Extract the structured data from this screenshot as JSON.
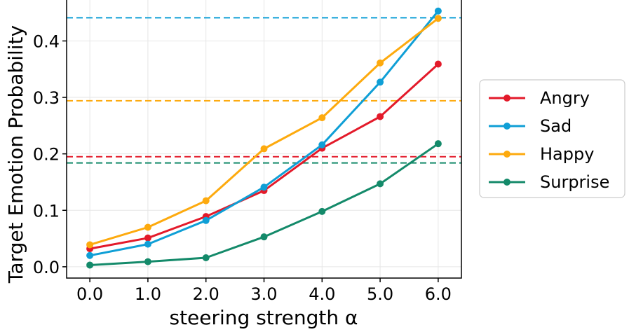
{
  "chart_data": {
    "type": "line",
    "title": "",
    "xlabel": "steering strength α",
    "ylabel": "Target Emotion Probability",
    "x": [
      0.0,
      1.0,
      2.0,
      3.0,
      4.0,
      5.0,
      6.0
    ],
    "xtick_labels": [
      "0.0",
      "1.0",
      "2.0",
      "3.0",
      "4.0",
      "5.0",
      "6.0"
    ],
    "yticks": [
      0.0,
      0.1,
      0.2,
      0.3,
      0.4
    ],
    "ytick_labels": [
      "0.0",
      "0.1",
      "0.2",
      "0.3",
      "0.4"
    ],
    "xlim": [
      -0.4,
      6.4
    ],
    "ylim": [
      -0.02,
      0.475
    ],
    "grid": true,
    "legend_position": "outside-right",
    "series": [
      {
        "name": "Angry",
        "color": "#e31a2a",
        "values": [
          0.032,
          0.051,
          0.089,
          0.135,
          0.21,
          0.266,
          0.359
        ],
        "baseline": 0.195
      },
      {
        "name": "Sad",
        "color": "#0f9fd6",
        "values": [
          0.02,
          0.04,
          0.082,
          0.141,
          0.216,
          0.327,
          0.453
        ],
        "baseline": 0.441
      },
      {
        "name": "Happy",
        "color": "#fdaa0e",
        "values": [
          0.039,
          0.07,
          0.117,
          0.209,
          0.264,
          0.361,
          0.44
        ],
        "baseline": 0.294
      },
      {
        "name": "Surprise",
        "color": "#148a6a",
        "values": [
          0.003,
          0.009,
          0.016,
          0.053,
          0.098,
          0.147,
          0.218
        ],
        "baseline": 0.184
      }
    ]
  }
}
